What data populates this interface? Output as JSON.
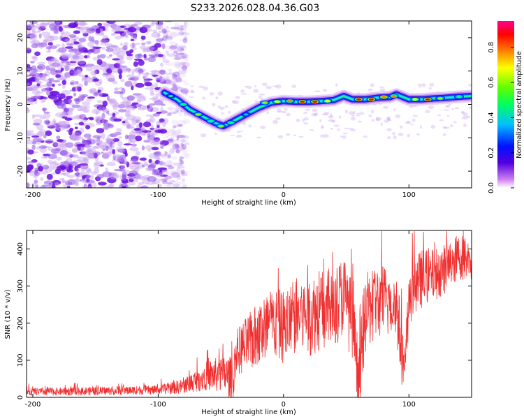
{
  "title": "S233.2026.028.04.36.G03",
  "chart_data": [
    {
      "type": "heatmap",
      "name": "spectrogram",
      "xlabel": "Height of straight line (km)",
      "ylabel": "Frequency (Hz)",
      "xlim": [
        -205,
        150
      ],
      "ylim": [
        -25,
        25
      ],
      "xticks": [
        -200,
        -100,
        0,
        100
      ],
      "yticks": [
        -20,
        -10,
        0,
        10,
        20
      ],
      "colorbar_label": "Normalized spectral amplitude",
      "colorbar_range": [
        0,
        0.95
      ],
      "colorbar_ticks": [
        0.0,
        0.2,
        0.4,
        0.6,
        0.8
      ],
      "colors": [
        "#ffffff",
        "#c070f0",
        "#4000e0",
        "#0020ff",
        "#00c0ff",
        "#00ff80",
        "#80ff00",
        "#ffff00",
        "#ff8000",
        "#ff0000",
        "#ff0080"
      ],
      "noise_region_x": [
        -205,
        -85
      ],
      "ridge": [
        {
          "x": -95,
          "f": 3.5
        },
        {
          "x": -85,
          "f": 1.5
        },
        {
          "x": -75,
          "f": -1.5
        },
        {
          "x": -65,
          "f": -3.5
        },
        {
          "x": -55,
          "f": -5.5
        },
        {
          "x": -48,
          "f": -6.5
        },
        {
          "x": -40,
          "f": -5
        },
        {
          "x": -30,
          "f": -3
        },
        {
          "x": -20,
          "f": -1
        },
        {
          "x": -10,
          "f": 0.5
        },
        {
          "x": 0,
          "f": 1
        },
        {
          "x": 10,
          "f": 0.8
        },
        {
          "x": 20,
          "f": 0.8
        },
        {
          "x": 30,
          "f": 1
        },
        {
          "x": 40,
          "f": 1.3
        },
        {
          "x": 48,
          "f": 2.5
        },
        {
          "x": 55,
          "f": 1.5
        },
        {
          "x": 65,
          "f": 1.5
        },
        {
          "x": 75,
          "f": 2
        },
        {
          "x": 85,
          "f": 2.2
        },
        {
          "x": 90,
          "f": 3
        },
        {
          "x": 100,
          "f": 1.5
        },
        {
          "x": 110,
          "f": 1.5
        },
        {
          "x": 120,
          "f": 1.8
        },
        {
          "x": 130,
          "f": 2
        },
        {
          "x": 140,
          "f": 2.3
        },
        {
          "x": 150,
          "f": 2.5
        }
      ],
      "peaks": [
        {
          "x": -90,
          "f": 2.5,
          "amp": 0.45
        },
        {
          "x": -80,
          "f": 0,
          "amp": 0.5
        },
        {
          "x": -68,
          "f": -3,
          "amp": 0.55
        },
        {
          "x": -58,
          "f": -5,
          "amp": 0.5
        },
        {
          "x": -50,
          "f": -6.5,
          "amp": 0.55
        },
        {
          "x": -42,
          "f": -5.5,
          "amp": 0.5
        },
        {
          "x": -30,
          "f": -3,
          "amp": 0.4
        },
        {
          "x": -15,
          "f": 0.5,
          "amp": 0.6
        },
        {
          "x": -5,
          "f": 0.8,
          "amp": 0.7
        },
        {
          "x": 5,
          "f": 1,
          "amp": 0.75
        },
        {
          "x": 15,
          "f": 0.8,
          "amp": 0.9
        },
        {
          "x": 25,
          "f": 0.8,
          "amp": 0.85
        },
        {
          "x": 35,
          "f": 1,
          "amp": 0.7
        },
        {
          "x": 60,
          "f": 1.5,
          "amp": 0.85
        },
        {
          "x": 70,
          "f": 1.5,
          "amp": 0.9
        },
        {
          "x": 80,
          "f": 2.2,
          "amp": 0.8
        },
        {
          "x": 88,
          "f": 2.5,
          "amp": 0.75
        },
        {
          "x": 105,
          "f": 1.5,
          "amp": 0.7
        },
        {
          "x": 115,
          "f": 1.5,
          "amp": 0.9
        },
        {
          "x": 125,
          "f": 1.8,
          "amp": 0.6
        },
        {
          "x": 140,
          "f": 2.3,
          "amp": 0.5
        }
      ]
    },
    {
      "type": "line",
      "name": "snr",
      "xlabel": "Height of straight line (km)",
      "ylabel": "SNR (10 * v/v)",
      "xlim": [
        -205,
        150
      ],
      "ylim": [
        0,
        450
      ],
      "xticks": [
        -200,
        -100,
        0,
        100
      ],
      "yticks": [
        0,
        100,
        200,
        300,
        400
      ],
      "color": "#f03030",
      "series": [
        {
          "name": "envelope_mean",
          "x": [
            -205,
            -150,
            -100,
            -80,
            -70,
            -60,
            -50,
            -45,
            -40,
            -38,
            -30,
            -20,
            -10,
            0,
            10,
            20,
            30,
            40,
            48,
            55,
            60,
            65,
            70,
            80,
            90,
            97,
            100,
            110,
            120,
            130,
            140,
            150
          ],
          "values": [
            15,
            17,
            20,
            30,
            45,
            60,
            60,
            60,
            45,
            120,
            140,
            170,
            200,
            190,
            220,
            220,
            235,
            240,
            280,
            200,
            30,
            220,
            250,
            260,
            250,
            50,
            270,
            320,
            330,
            350,
            380,
            370
          ]
        },
        {
          "name": "spread",
          "x": [
            -205,
            -100,
            -80,
            -60,
            -40,
            -20,
            0,
            20,
            40,
            60,
            80,
            100,
            120,
            150
          ],
          "values": [
            10,
            12,
            20,
            40,
            60,
            90,
            100,
            110,
            110,
            110,
            100,
            90,
            70,
            60
          ]
        }
      ]
    }
  ]
}
